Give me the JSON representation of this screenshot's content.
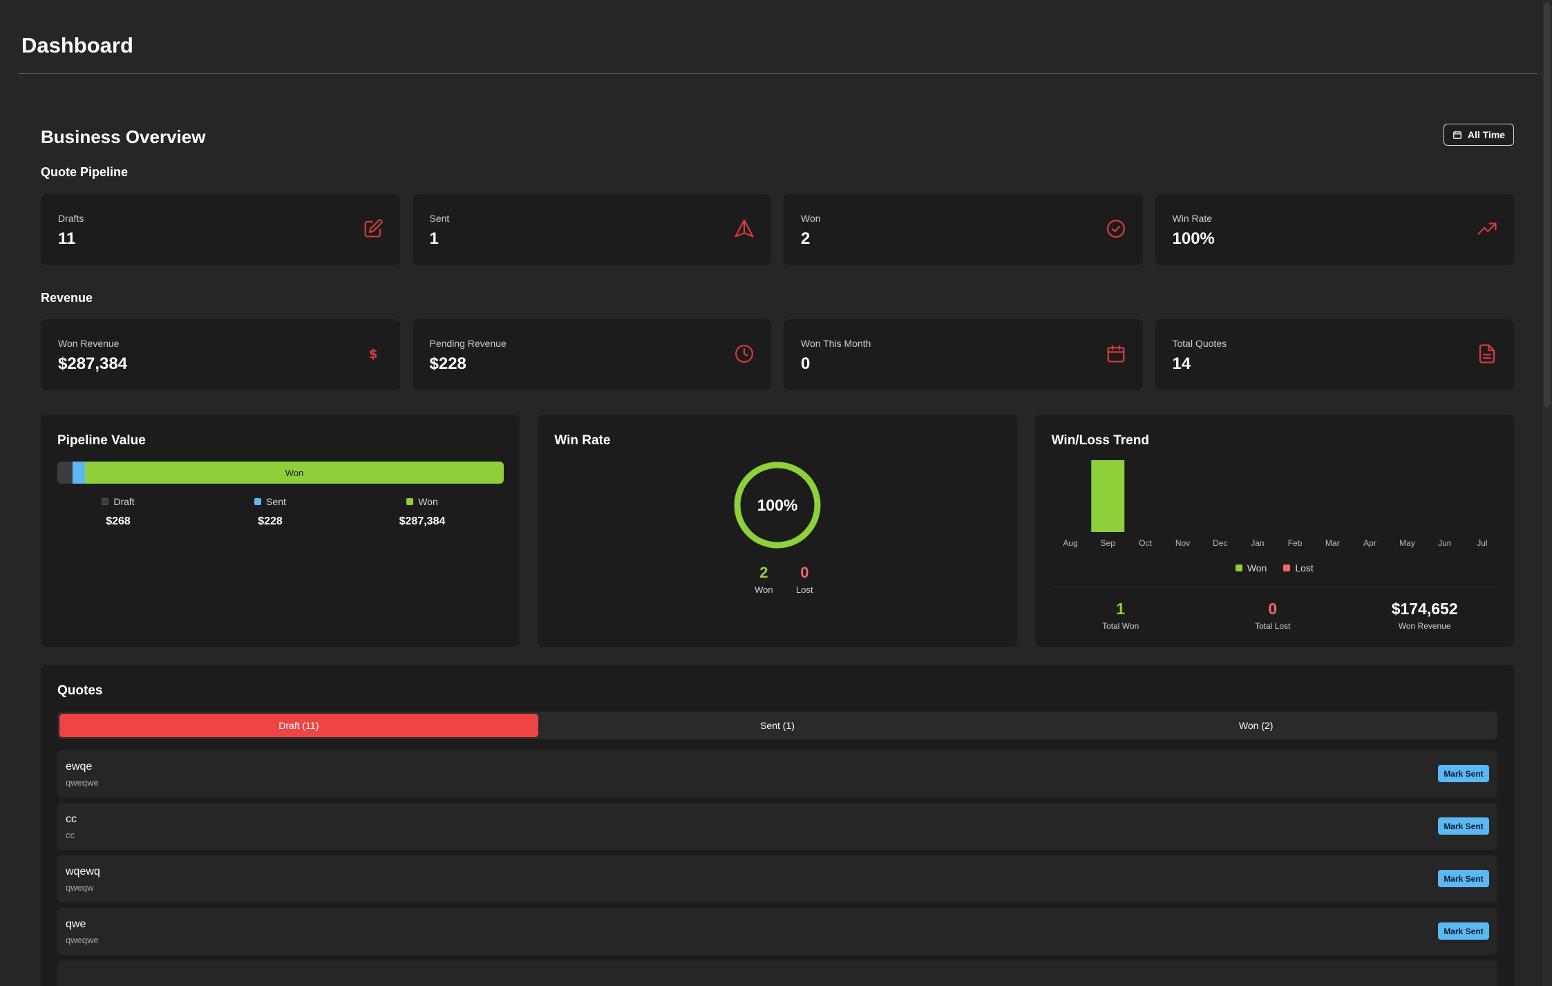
{
  "header": {
    "title": "Dashboard"
  },
  "overview": {
    "title": "Business Overview",
    "range_label": "All Time"
  },
  "pipeline": {
    "label": "Quote Pipeline",
    "cards": [
      {
        "label": "Drafts",
        "value": "11",
        "icon": "edit-icon"
      },
      {
        "label": "Sent",
        "value": "1",
        "icon": "send-icon"
      },
      {
        "label": "Won",
        "value": "2",
        "icon": "check-circle-icon"
      },
      {
        "label": "Win Rate",
        "value": "100%",
        "icon": "trending-up-icon"
      }
    ]
  },
  "revenue": {
    "label": "Revenue",
    "cards": [
      {
        "label": "Won Revenue",
        "value": "$287,384",
        "icon": "dollar-icon"
      },
      {
        "label": "Pending Revenue",
        "value": "$228",
        "icon": "clock-icon"
      },
      {
        "label": "Won This Month",
        "value": "0",
        "icon": "calendar-icon"
      },
      {
        "label": "Total Quotes",
        "value": "14",
        "icon": "document-icon"
      }
    ]
  },
  "pipeline_value": {
    "title": "Pipeline Value",
    "bar_label": "Won",
    "segments": [
      {
        "name": "Draft",
        "value": "$268",
        "amount": 268,
        "color": "#3d3d3d"
      },
      {
        "name": "Sent",
        "value": "$228",
        "amount": 228,
        "color": "#5bb8f5"
      },
      {
        "name": "Won",
        "value": "$287,384",
        "amount": 287384,
        "color": "#8ed03a"
      }
    ]
  },
  "win_rate": {
    "title": "Win Rate",
    "percent_label": "100%",
    "percent": 100,
    "won": {
      "value": "2",
      "label": "Won"
    },
    "lost": {
      "value": "0",
      "label": "Lost"
    }
  },
  "trend": {
    "title": "Win/Loss Trend",
    "legend": {
      "won": "Won",
      "lost": "Lost"
    },
    "colors": {
      "won": "#8ed03a",
      "lost": "#f06a6a"
    },
    "totals": [
      {
        "value": "1",
        "label": "Total Won",
        "color": "#8ed03a"
      },
      {
        "value": "0",
        "label": "Total Lost",
        "color": "#f06a6a"
      },
      {
        "value": "$174,652",
        "label": "Won Revenue",
        "color": "#ffffff"
      }
    ]
  },
  "chart_data": {
    "type": "bar",
    "categories": [
      "Aug",
      "Sep",
      "Oct",
      "Nov",
      "Dec",
      "Jan",
      "Feb",
      "Mar",
      "Apr",
      "May",
      "Jun",
      "Jul"
    ],
    "series": [
      {
        "name": "Won",
        "values": [
          0,
          1,
          0,
          0,
          0,
          0,
          0,
          0,
          0,
          0,
          0,
          0
        ]
      },
      {
        "name": "Lost",
        "values": [
          0,
          0,
          0,
          0,
          0,
          0,
          0,
          0,
          0,
          0,
          0,
          0
        ]
      }
    ],
    "ylim": [
      0,
      1
    ],
    "grid": false,
    "legend": "bottom"
  },
  "quotes": {
    "title": "Quotes",
    "tabs": [
      "Draft (11)",
      "Sent (1)",
      "Won (2)"
    ],
    "items": [
      {
        "name": "ewqe",
        "sub": "qweqwe",
        "action": "Mark Sent"
      },
      {
        "name": "cc",
        "sub": "cc",
        "action": "Mark Sent"
      },
      {
        "name": "wqewq",
        "sub": "qweqw",
        "action": "Mark Sent"
      },
      {
        "name": "qwe",
        "sub": "qweqwe",
        "action": "Mark Sent"
      }
    ]
  }
}
